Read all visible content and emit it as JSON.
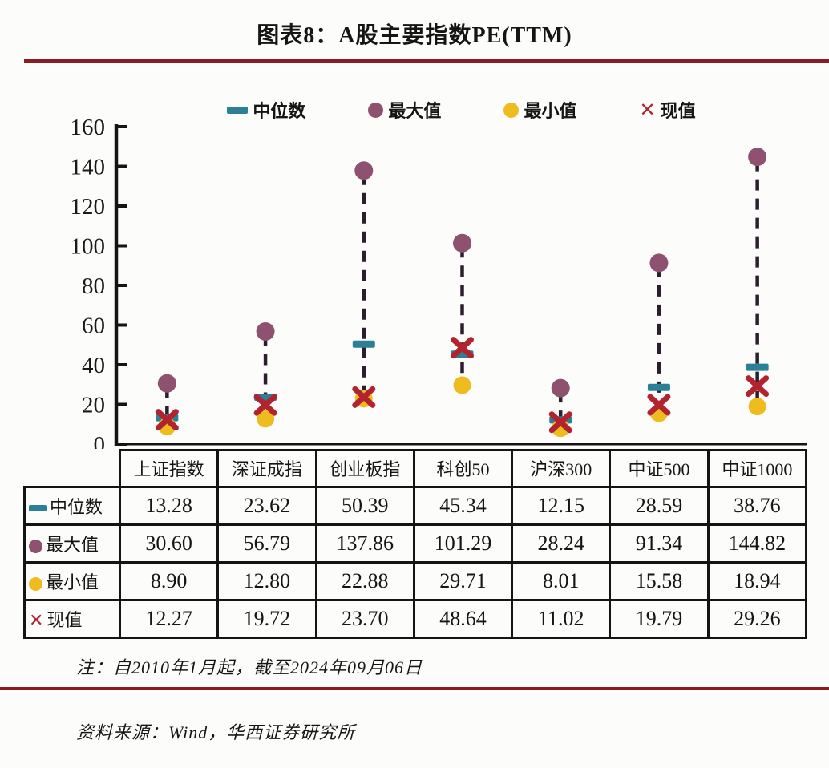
{
  "title": "图表8：A股主要指数PE(TTM)",
  "note": "注：自2010年1月起，截至2024年09月06日",
  "source": "资料来源：Wind，华西证券研究所",
  "colors": {
    "median": "#2b7f96",
    "max": "#8e5170",
    "min": "#eebc1e",
    "current": "#b2222f",
    "range_dash_line": "#2b1f2e",
    "separator_rule": "#8d1b21",
    "axis": "#141414"
  },
  "legend": {
    "items": [
      {
        "label": "中位数",
        "marker": "dash"
      },
      {
        "label": "最大值",
        "marker": "circle"
      },
      {
        "label": "最小值",
        "marker": "circle"
      },
      {
        "label": "现值",
        "marker": "x"
      }
    ]
  },
  "chart_data": {
    "type": "scatter",
    "subtype": "dumbbell-range",
    "title": "图表8：A股主要指数PE(TTM)",
    "categories": [
      "上证指数",
      "深证成指",
      "创业板指",
      "科创50",
      "沪深300",
      "中证500",
      "中证1000"
    ],
    "series": [
      {
        "name": "中位数",
        "marker": "dash",
        "color": "#2b7f96",
        "values": [
          13.28,
          23.62,
          50.39,
          45.34,
          12.15,
          28.59,
          38.76
        ]
      },
      {
        "name": "最大值",
        "marker": "circle",
        "color": "#8e5170",
        "values": [
          30.6,
          56.79,
          137.86,
          101.29,
          28.24,
          91.34,
          144.82
        ]
      },
      {
        "name": "最小值",
        "marker": "circle",
        "color": "#eebc1e",
        "values": [
          8.9,
          12.8,
          22.88,
          29.71,
          8.01,
          15.58,
          18.94
        ]
      },
      {
        "name": "现值",
        "marker": "x",
        "color": "#b2222f",
        "values": [
          12.27,
          19.72,
          23.7,
          48.64,
          11.02,
          19.79,
          29.26
        ]
      }
    ],
    "range_line": {
      "from": "最小值",
      "to": "最大值",
      "style": "dashed"
    },
    "ylim": [
      0,
      160
    ],
    "ytick_step": 20,
    "grid": false,
    "legend_position": "top"
  },
  "table": {
    "headers": [
      "上证指数",
      "深证成指",
      "创业板指",
      "科创50",
      "沪深300",
      "中证500",
      "中证1000"
    ],
    "rows": [
      {
        "label": "中位数",
        "marker": "dash",
        "values": [
          "13.28",
          "23.62",
          "50.39",
          "45.34",
          "12.15",
          "28.59",
          "38.76"
        ]
      },
      {
        "label": "最大值",
        "marker": "max",
        "values": [
          "30.60",
          "56.79",
          "137.86",
          "101.29",
          "28.24",
          "91.34",
          "144.82"
        ]
      },
      {
        "label": "最小值",
        "marker": "min",
        "values": [
          "8.90",
          "12.80",
          "22.88",
          "29.71",
          "8.01",
          "15.58",
          "18.94"
        ]
      },
      {
        "label": "现值",
        "marker": "x",
        "values": [
          "12.27",
          "19.72",
          "23.70",
          "48.64",
          "11.02",
          "19.79",
          "29.26"
        ]
      }
    ]
  }
}
